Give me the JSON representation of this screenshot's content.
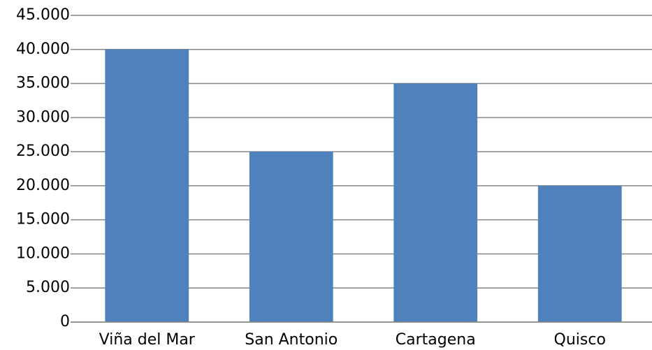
{
  "chart_data": {
    "type": "bar",
    "categories": [
      "Viña del Mar",
      "San Antonio",
      "Cartagena",
      "Quisco"
    ],
    "values": [
      40000,
      25000,
      35000,
      20000
    ],
    "color": "#4f81bd",
    "ylim": [
      0,
      45000
    ],
    "yticks": [
      0,
      {
        "value": 5000,
        "label": "5.000"
      },
      {
        "value": 10000,
        "label": "10.000"
      },
      {
        "value": 15000,
        "label": "15.000"
      },
      {
        "value": 20000,
        "label": "20.000"
      },
      {
        "value": 25000,
        "label": "25.000"
      },
      {
        "value": 30000,
        "label": "30.000"
      },
      {
        "value": 35000,
        "label": "35.000"
      },
      {
        "value": 40000,
        "label": "40.000"
      },
      {
        "value": 45000,
        "label": "45.000"
      }
    ],
    "grid": true
  }
}
